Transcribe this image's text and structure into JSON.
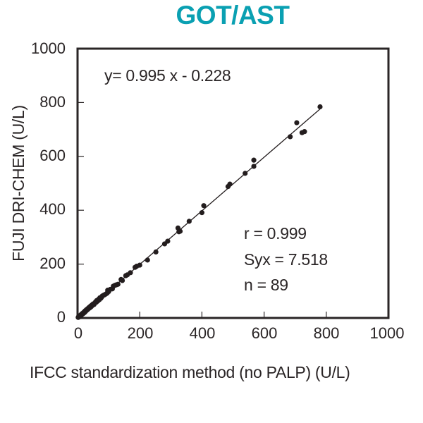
{
  "chart_data": {
    "type": "scatter",
    "title": "GOT/AST",
    "xlabel": "IFCC standardization method (no PALP) (U/L)",
    "ylabel": "FUJI DRI-CHEM (U/L)",
    "xlim": [
      0,
      1000
    ],
    "ylim": [
      0,
      1000
    ],
    "xticks": [
      "0",
      "200",
      "400",
      "600",
      "800",
      "1000"
    ],
    "yticks": [
      "0",
      "200",
      "400",
      "600",
      "800",
      "1000"
    ],
    "grid": false,
    "legend": null,
    "regression": {
      "slope": 0.995,
      "intercept": -0.228,
      "x_range": [
        0,
        780
      ]
    },
    "annotations": {
      "equation": "y= 0.995 x - 0.228",
      "r": "r = 0.999",
      "syx": "Syx = 7.518",
      "n": "n = 89"
    },
    "points": [
      [
        780,
        784
      ],
      [
        705,
        725
      ],
      [
        684,
        673
      ],
      [
        722,
        688
      ],
      [
        730,
        692
      ],
      [
        567,
        586
      ],
      [
        567,
        563
      ],
      [
        539,
        537
      ],
      [
        490,
        497
      ],
      [
        484,
        488
      ],
      [
        406,
        417
      ],
      [
        400,
        391
      ],
      [
        359,
        359
      ],
      [
        323,
        334
      ],
      [
        330,
        322
      ],
      [
        326,
        320
      ],
      [
        290,
        285
      ],
      [
        280,
        275
      ],
      [
        252,
        245
      ],
      [
        225,
        215
      ],
      [
        200,
        196
      ],
      [
        190,
        192
      ],
      [
        185,
        188
      ],
      [
        160,
        160
      ],
      [
        155,
        157
      ],
      [
        144,
        139
      ],
      [
        130,
        125
      ],
      [
        125,
        123
      ],
      [
        120,
        121
      ],
      [
        115,
        118
      ],
      [
        112,
        108
      ],
      [
        105,
        106
      ],
      [
        100,
        98
      ],
      [
        97,
        103
      ],
      [
        95,
        92
      ],
      [
        90,
        88
      ],
      [
        85,
        85
      ],
      [
        80,
        82
      ],
      [
        78,
        78
      ],
      [
        75,
        73
      ],
      [
        72,
        75
      ],
      [
        70,
        68
      ],
      [
        68,
        70
      ],
      [
        65,
        63
      ],
      [
        62,
        65
      ],
      [
        60,
        58
      ],
      [
        58,
        60
      ],
      [
        55,
        55
      ],
      [
        53,
        50
      ],
      [
        50,
        52
      ],
      [
        48,
        47
      ],
      [
        46,
        48
      ],
      [
        44,
        42
      ],
      [
        42,
        44
      ],
      [
        40,
        38
      ],
      [
        38,
        40
      ],
      [
        36,
        35
      ],
      [
        34,
        36
      ],
      [
        32,
        31
      ],
      [
        30,
        32
      ],
      [
        29,
        28
      ],
      [
        28,
        30
      ],
      [
        26,
        25
      ],
      [
        25,
        27
      ],
      [
        24,
        22
      ],
      [
        23,
        24
      ],
      [
        22,
        20
      ],
      [
        21,
        22
      ],
      [
        20,
        18
      ],
      [
        19,
        20
      ],
      [
        18,
        16
      ],
      [
        17,
        18
      ],
      [
        16,
        15
      ],
      [
        15,
        16
      ],
      [
        14,
        13
      ],
      [
        13,
        14
      ],
      [
        12,
        11
      ],
      [
        11,
        12
      ],
      [
        10,
        9
      ],
      [
        9,
        10
      ],
      [
        8,
        7
      ],
      [
        7,
        8
      ],
      [
        6,
        6
      ],
      [
        5,
        5
      ],
      [
        4,
        3
      ],
      [
        3,
        4
      ],
      [
        2,
        2
      ],
      [
        140,
        143
      ],
      [
        170,
        168
      ]
    ]
  },
  "colors": {
    "title": "#0aa0b2",
    "axis": "#2a2526",
    "points": "#231d1e"
  }
}
